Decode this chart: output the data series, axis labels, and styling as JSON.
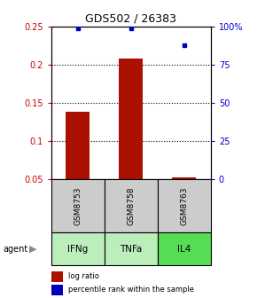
{
  "title": "GDS502 / 26383",
  "samples": [
    "GSM8753",
    "GSM8758",
    "GSM8763"
  ],
  "agents": [
    "IFNg",
    "TNFa",
    "IL4"
  ],
  "log_ratio": [
    0.138,
    0.208,
    0.052
  ],
  "percentile_rank_pct": [
    99,
    99,
    88
  ],
  "ylim_left": [
    0.05,
    0.25
  ],
  "ylim_right": [
    0,
    100
  ],
  "yticks_left": [
    0.05,
    0.1,
    0.15,
    0.2,
    0.25
  ],
  "yticks_right": [
    0,
    25,
    50,
    75,
    100
  ],
  "ytick_labels_left": [
    "0.05",
    "0.1",
    "0.15",
    "0.2",
    "0.25"
  ],
  "ytick_labels_right": [
    "0",
    "25",
    "50",
    "75",
    "100%"
  ],
  "bar_color": "#aa1100",
  "dot_color": "#0000bb",
  "agent_colors": [
    "#bbeebb",
    "#bbeebb",
    "#55dd55"
  ],
  "sample_box_color": "#cccccc",
  "bar_width": 0.45,
  "x_positions": [
    1,
    2,
    3
  ],
  "xlim": [
    0.5,
    3.5
  ],
  "grid_dotted_at": [
    0.1,
    0.15,
    0.2
  ],
  "left_axis_color": "#cc0000",
  "right_axis_color": "#0000cc"
}
